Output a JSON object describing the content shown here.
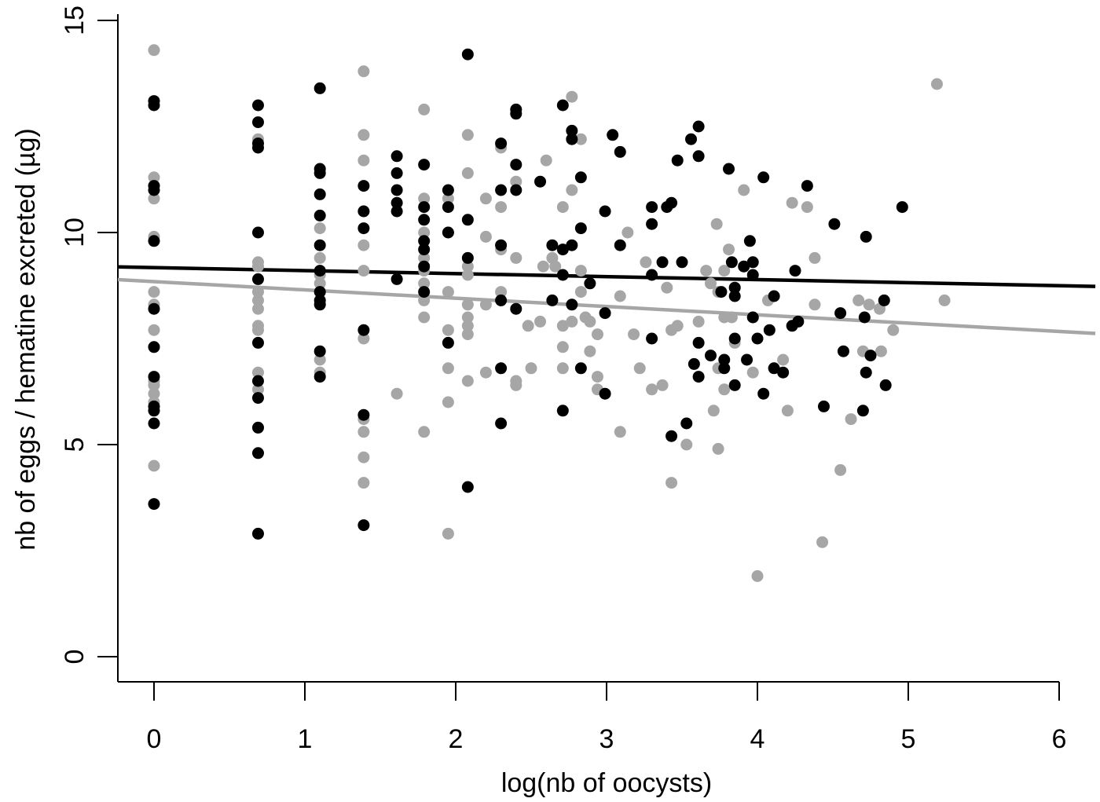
{
  "chart_data": {
    "type": "scatter",
    "title": "",
    "xlabel": "log(nb of oocysts)",
    "ylabel": "nb of eggs / hematine excreted (µg)",
    "xlim": [
      -0.24,
      6.0
    ],
    "ylim": [
      0,
      15
    ],
    "xticks": [
      0,
      1,
      2,
      3,
      4,
      5,
      6
    ],
    "yticks": [
      0,
      5,
      10,
      15
    ],
    "grid": false,
    "legend": null,
    "series": [
      {
        "name": "black group",
        "color": "#000000",
        "points": [
          [
            0,
            13.1
          ],
          [
            0,
            13.0
          ],
          [
            0,
            11.1
          ],
          [
            0,
            11.0
          ],
          [
            0,
            9.8
          ],
          [
            0,
            8.2
          ],
          [
            0,
            7.3
          ],
          [
            0,
            6.6
          ],
          [
            0,
            5.9
          ],
          [
            0,
            5.8
          ],
          [
            0,
            5.5
          ],
          [
            0,
            3.6
          ],
          [
            0.69,
            13.0
          ],
          [
            0.69,
            12.6
          ],
          [
            0.69,
            12.1
          ],
          [
            0.69,
            12.0
          ],
          [
            0.69,
            10.0
          ],
          [
            0.69,
            8.9
          ],
          [
            0.69,
            7.4
          ],
          [
            0.69,
            6.5
          ],
          [
            0.69,
            6.1
          ],
          [
            0.69,
            5.4
          ],
          [
            0.69,
            4.8
          ],
          [
            0.69,
            2.9
          ],
          [
            1.1,
            13.4
          ],
          [
            1.1,
            11.5
          ],
          [
            1.1,
            11.4
          ],
          [
            1.1,
            10.9
          ],
          [
            1.1,
            10.4
          ],
          [
            1.1,
            9.7
          ],
          [
            1.1,
            9.1
          ],
          [
            1.1,
            8.6
          ],
          [
            1.1,
            8.4
          ],
          [
            1.1,
            8.3
          ],
          [
            1.1,
            7.2
          ],
          [
            1.1,
            6.6
          ],
          [
            1.39,
            11.1
          ],
          [
            1.39,
            10.5
          ],
          [
            1.39,
            10.1
          ],
          [
            1.39,
            7.7
          ],
          [
            1.39,
            5.7
          ],
          [
            1.39,
            3.1
          ],
          [
            1.61,
            11.8
          ],
          [
            1.61,
            11.4
          ],
          [
            1.61,
            11.0
          ],
          [
            1.61,
            10.7
          ],
          [
            1.61,
            10.5
          ],
          [
            1.61,
            8.9
          ],
          [
            1.79,
            11.6
          ],
          [
            1.79,
            10.6
          ],
          [
            1.79,
            10.3
          ],
          [
            1.79,
            9.8
          ],
          [
            1.79,
            9.6
          ],
          [
            1.79,
            9.2
          ],
          [
            1.79,
            8.6
          ],
          [
            1.95,
            11.0
          ],
          [
            1.95,
            10.6
          ],
          [
            1.95,
            10.0
          ],
          [
            1.95,
            7.4
          ],
          [
            2.08,
            14.2
          ],
          [
            2.08,
            10.3
          ],
          [
            2.08,
            9.4
          ],
          [
            2.08,
            4.0
          ],
          [
            2.3,
            12.1
          ],
          [
            2.3,
            11.0
          ],
          [
            2.3,
            9.7
          ],
          [
            2.3,
            8.4
          ],
          [
            2.3,
            6.8
          ],
          [
            2.3,
            5.5
          ],
          [
            2.4,
            12.9
          ],
          [
            2.4,
            12.8
          ],
          [
            2.4,
            11.6
          ],
          [
            2.4,
            11.0
          ],
          [
            2.4,
            8.2
          ],
          [
            2.56,
            11.2
          ],
          [
            2.64,
            9.7
          ],
          [
            2.64,
            8.4
          ],
          [
            2.71,
            13.0
          ],
          [
            2.71,
            9.6
          ],
          [
            2.71,
            9.0
          ],
          [
            2.71,
            5.8
          ],
          [
            2.77,
            12.4
          ],
          [
            2.77,
            12.2
          ],
          [
            2.77,
            9.7
          ],
          [
            2.77,
            8.3
          ],
          [
            2.83,
            11.3
          ],
          [
            2.83,
            10.1
          ],
          [
            2.83,
            6.8
          ],
          [
            2.89,
            8.8
          ],
          [
            2.99,
            10.5
          ],
          [
            2.99,
            8.1
          ],
          [
            2.99,
            6.2
          ],
          [
            3.04,
            12.3
          ],
          [
            3.09,
            11.9
          ],
          [
            3.09,
            9.7
          ],
          [
            3.3,
            10.6
          ],
          [
            3.3,
            10.2
          ],
          [
            3.3,
            9.0
          ],
          [
            3.3,
            7.5
          ],
          [
            3.37,
            9.3
          ],
          [
            3.4,
            10.6
          ],
          [
            3.43,
            10.7
          ],
          [
            3.43,
            5.2
          ],
          [
            3.47,
            11.7
          ],
          [
            3.5,
            9.3
          ],
          [
            3.53,
            5.5
          ],
          [
            3.56,
            12.2
          ],
          [
            3.58,
            6.9
          ],
          [
            3.61,
            12.5
          ],
          [
            3.61,
            11.8
          ],
          [
            3.61,
            7.4
          ],
          [
            3.61,
            6.6
          ],
          [
            3.69,
            7.1
          ],
          [
            3.76,
            8.6
          ],
          [
            3.78,
            7.0
          ],
          [
            3.78,
            6.8
          ],
          [
            3.81,
            11.5
          ],
          [
            3.83,
            9.3
          ],
          [
            3.85,
            8.7
          ],
          [
            3.85,
            8.5
          ],
          [
            3.85,
            7.5
          ],
          [
            3.85,
            6.4
          ],
          [
            3.91,
            9.2
          ],
          [
            3.93,
            7.0
          ],
          [
            3.95,
            9.8
          ],
          [
            3.97,
            9.3
          ],
          [
            3.97,
            9.0
          ],
          [
            3.97,
            8.0
          ],
          [
            4.0,
            7.5
          ],
          [
            4.04,
            11.3
          ],
          [
            4.04,
            6.2
          ],
          [
            4.08,
            7.7
          ],
          [
            4.11,
            8.5
          ],
          [
            4.11,
            6.8
          ],
          [
            4.17,
            6.7
          ],
          [
            4.23,
            7.8
          ],
          [
            4.25,
            9.1
          ],
          [
            4.27,
            7.9
          ],
          [
            4.33,
            11.1
          ],
          [
            4.44,
            5.9
          ],
          [
            4.51,
            10.2
          ],
          [
            4.55,
            8.1
          ],
          [
            4.57,
            7.2
          ],
          [
            4.7,
            5.8
          ],
          [
            4.71,
            8.0
          ],
          [
            4.72,
            9.9
          ],
          [
            4.72,
            6.7
          ],
          [
            4.75,
            7.1
          ],
          [
            4.84,
            8.4
          ],
          [
            4.85,
            6.4
          ],
          [
            4.96,
            10.6
          ]
        ]
      },
      {
        "name": "gray group",
        "color": "#a6a6a6",
        "points": [
          [
            0,
            14.3
          ],
          [
            0,
            11.3
          ],
          [
            0,
            11.1
          ],
          [
            0,
            10.8
          ],
          [
            0,
            9.9
          ],
          [
            0,
            8.6
          ],
          [
            0,
            8.3
          ],
          [
            0,
            7.7
          ],
          [
            0,
            7.3
          ],
          [
            0,
            6.5
          ],
          [
            0,
            6.4
          ],
          [
            0,
            6.2
          ],
          [
            0,
            6.0
          ],
          [
            0,
            4.5
          ],
          [
            0.69,
            12.2
          ],
          [
            0.69,
            9.3
          ],
          [
            0.69,
            9.2
          ],
          [
            0.69,
            8.6
          ],
          [
            0.69,
            8.4
          ],
          [
            0.69,
            8.2
          ],
          [
            0.69,
            7.8
          ],
          [
            0.69,
            7.7
          ],
          [
            0.69,
            6.7
          ],
          [
            0.69,
            6.3
          ],
          [
            0.69,
            5.4
          ],
          [
            1.1,
            10.1
          ],
          [
            1.1,
            9.4
          ],
          [
            1.1,
            9.0
          ],
          [
            1.1,
            8.8
          ],
          [
            1.1,
            7.0
          ],
          [
            1.1,
            6.7
          ],
          [
            1.39,
            13.8
          ],
          [
            1.39,
            12.3
          ],
          [
            1.39,
            11.7
          ],
          [
            1.39,
            10.5
          ],
          [
            1.39,
            9.7
          ],
          [
            1.39,
            9.1
          ],
          [
            1.39,
            7.5
          ],
          [
            1.39,
            5.6
          ],
          [
            1.39,
            5.3
          ],
          [
            1.39,
            4.7
          ],
          [
            1.39,
            4.1
          ],
          [
            1.61,
            6.2
          ],
          [
            1.79,
            12.9
          ],
          [
            1.79,
            10.8
          ],
          [
            1.79,
            10.0
          ],
          [
            1.79,
            9.4
          ],
          [
            1.79,
            9.1
          ],
          [
            1.79,
            8.8
          ],
          [
            1.79,
            8.4
          ],
          [
            1.79,
            8.0
          ],
          [
            1.79,
            5.3
          ],
          [
            1.95,
            10.8
          ],
          [
            1.95,
            10.0
          ],
          [
            1.95,
            8.6
          ],
          [
            1.95,
            7.7
          ],
          [
            1.95,
            6.8
          ],
          [
            1.95,
            6.0
          ],
          [
            1.95,
            2.9
          ],
          [
            2.08,
            12.3
          ],
          [
            2.08,
            11.4
          ],
          [
            2.08,
            9.2
          ],
          [
            2.08,
            9.0
          ],
          [
            2.08,
            8.3
          ],
          [
            2.08,
            8.0
          ],
          [
            2.08,
            7.8
          ],
          [
            2.08,
            7.6
          ],
          [
            2.08,
            6.5
          ],
          [
            2.2,
            10.8
          ],
          [
            2.2,
            9.9
          ],
          [
            2.2,
            8.3
          ],
          [
            2.2,
            6.7
          ],
          [
            2.3,
            12.0
          ],
          [
            2.3,
            10.6
          ],
          [
            2.3,
            9.6
          ],
          [
            2.3,
            8.6
          ],
          [
            2.4,
            11.2
          ],
          [
            2.4,
            9.4
          ],
          [
            2.4,
            6.5
          ],
          [
            2.4,
            6.4
          ],
          [
            2.48,
            7.8
          ],
          [
            2.5,
            6.8
          ],
          [
            2.56,
            7.9
          ],
          [
            2.58,
            9.2
          ],
          [
            2.6,
            11.7
          ],
          [
            2.64,
            9.4
          ],
          [
            2.66,
            9.2
          ],
          [
            2.71,
            10.6
          ],
          [
            2.71,
            7.3
          ],
          [
            2.71,
            6.8
          ],
          [
            2.71,
            7.8
          ],
          [
            2.77,
            13.2
          ],
          [
            2.77,
            11.0
          ],
          [
            2.77,
            7.9
          ],
          [
            2.83,
            12.2
          ],
          [
            2.83,
            9.1
          ],
          [
            2.83,
            8.6
          ],
          [
            2.86,
            8.0
          ],
          [
            2.89,
            7.9
          ],
          [
            2.89,
            7.2
          ],
          [
            2.94,
            7.6
          ],
          [
            2.94,
            6.6
          ],
          [
            2.94,
            6.3
          ],
          [
            3.09,
            8.5
          ],
          [
            3.09,
            5.3
          ],
          [
            3.14,
            10.0
          ],
          [
            3.18,
            7.6
          ],
          [
            3.22,
            6.8
          ],
          [
            3.26,
            9.3
          ],
          [
            3.3,
            6.3
          ],
          [
            3.37,
            6.4
          ],
          [
            3.4,
            8.7
          ],
          [
            3.43,
            7.7
          ],
          [
            3.43,
            4.1
          ],
          [
            3.47,
            7.8
          ],
          [
            3.53,
            5.0
          ],
          [
            3.61,
            7.9
          ],
          [
            3.66,
            9.1
          ],
          [
            3.69,
            8.8
          ],
          [
            3.71,
            5.8
          ],
          [
            3.73,
            10.2
          ],
          [
            3.74,
            8.6
          ],
          [
            3.74,
            6.8
          ],
          [
            3.74,
            4.9
          ],
          [
            3.78,
            9.1
          ],
          [
            3.78,
            8.0
          ],
          [
            3.78,
            6.3
          ],
          [
            3.81,
            9.6
          ],
          [
            3.83,
            8.0
          ],
          [
            3.85,
            8.7
          ],
          [
            3.85,
            7.4
          ],
          [
            3.91,
            11.0
          ],
          [
            3.91,
            9.2
          ],
          [
            3.97,
            8.0
          ],
          [
            3.97,
            6.7
          ],
          [
            4.0,
            1.9
          ],
          [
            4.07,
            8.4
          ],
          [
            4.17,
            7.0
          ],
          [
            4.2,
            5.8
          ],
          [
            4.23,
            10.7
          ],
          [
            4.33,
            10.6
          ],
          [
            4.38,
            9.4
          ],
          [
            4.38,
            8.3
          ],
          [
            4.43,
            2.7
          ],
          [
            4.55,
            4.4
          ],
          [
            4.62,
            5.6
          ],
          [
            4.67,
            8.4
          ],
          [
            4.7,
            7.2
          ],
          [
            4.74,
            8.3
          ],
          [
            4.81,
            8.2
          ],
          [
            4.82,
            7.2
          ],
          [
            4.9,
            7.7
          ],
          [
            5.19,
            13.5
          ],
          [
            5.24,
            8.4
          ]
        ]
      }
    ],
    "regression_lines": [
      {
        "name": "black fit",
        "color": "#000000",
        "x": [
          -0.24,
          6.24
        ],
        "y": [
          9.19,
          8.73
        ]
      },
      {
        "name": "gray fit",
        "color": "#a6a6a6",
        "x": [
          -0.24,
          6.24
        ],
        "y": [
          8.89,
          7.62
        ]
      }
    ]
  }
}
